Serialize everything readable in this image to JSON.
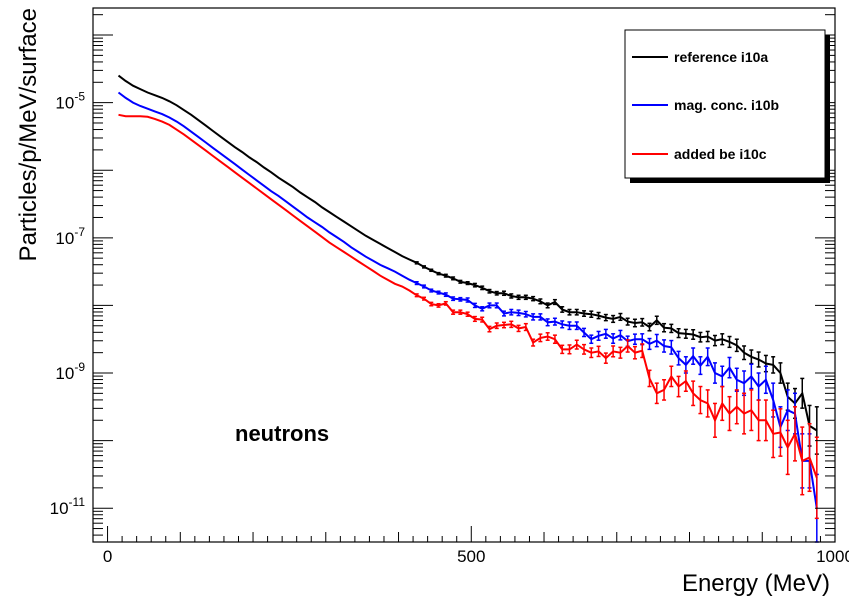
{
  "chart_data": {
    "type": "line",
    "title": "",
    "xlabel": "Energy (MeV)",
    "ylabel": "Particles/p/MeV/surface",
    "annotation": "neutrons",
    "xlim": [
      -20,
      1000
    ],
    "ylim_log10": [
      -11.5,
      -3.6
    ],
    "yscale": "log",
    "x_ticks": [
      {
        "value": 0,
        "label": "0"
      },
      {
        "value": 500,
        "label": "500"
      },
      {
        "value": 1000,
        "label": "1000"
      }
    ],
    "y_ticks": [
      {
        "exp": -5,
        "base": "10",
        "power": "-5"
      },
      {
        "exp": -7,
        "base": "10",
        "power": "-7"
      },
      {
        "exp": -9,
        "base": "10",
        "power": "-9"
      },
      {
        "exp": -11,
        "base": "10",
        "power": "-11"
      }
    ],
    "grid": false,
    "legend_position": "top-right",
    "series": [
      {
        "name": "reference i10a",
        "color": "#000000",
        "x": [
          15,
          25,
          35,
          45,
          55,
          65,
          75,
          85,
          95,
          105,
          115,
          125,
          135,
          145,
          155,
          165,
          175,
          185,
          195,
          205,
          215,
          225,
          235,
          245,
          255,
          265,
          275,
          285,
          295,
          305,
          315,
          325,
          335,
          345,
          355,
          365,
          375,
          385,
          395,
          405,
          415,
          425,
          435,
          445,
          455,
          465,
          475,
          485,
          495,
          505,
          515,
          525,
          535,
          545,
          555,
          565,
          575,
          585,
          595,
          605,
          615,
          625,
          635,
          645,
          655,
          665,
          675,
          685,
          695,
          705,
          715,
          725,
          735,
          745,
          755,
          765,
          775,
          785,
          795,
          805,
          815,
          825,
          835,
          845,
          855,
          865,
          875,
          885,
          895,
          905,
          915,
          925,
          935,
          945,
          955,
          965,
          975
        ],
        "y": [
          -4.6,
          -4.68,
          -4.75,
          -4.8,
          -4.85,
          -4.89,
          -4.93,
          -4.98,
          -5.04,
          -5.11,
          -5.18,
          -5.26,
          -5.34,
          -5.42,
          -5.5,
          -5.58,
          -5.66,
          -5.73,
          -5.81,
          -5.88,
          -5.96,
          -6.03,
          -6.11,
          -6.18,
          -6.25,
          -6.33,
          -6.4,
          -6.47,
          -6.55,
          -6.62,
          -6.69,
          -6.76,
          -6.83,
          -6.9,
          -6.97,
          -7.03,
          -7.09,
          -7.15,
          -7.21,
          -7.27,
          -7.32,
          -7.37,
          -7.43,
          -7.48,
          -7.53,
          -7.56,
          -7.6,
          -7.65,
          -7.67,
          -7.7,
          -7.74,
          -7.79,
          -7.82,
          -7.82,
          -7.86,
          -7.88,
          -7.88,
          -7.9,
          -7.94,
          -8.0,
          -7.95,
          -8.06,
          -8.1,
          -8.1,
          -8.12,
          -8.13,
          -8.15,
          -8.18,
          -8.2,
          -8.17,
          -8.24,
          -8.26,
          -8.25,
          -8.32,
          -8.22,
          -8.33,
          -8.34,
          -8.41,
          -8.42,
          -8.43,
          -8.47,
          -8.46,
          -8.52,
          -8.5,
          -8.54,
          -8.59,
          -8.7,
          -8.76,
          -8.8,
          -8.86,
          -8.88,
          -9.0,
          -9.35,
          -9.45,
          -9.3,
          -9.78,
          -9.85
        ],
        "err": [
          0,
          0,
          0,
          0,
          0,
          0,
          0,
          0,
          0,
          0,
          0,
          0,
          0,
          0,
          0,
          0,
          0,
          0,
          0,
          0,
          0,
          0,
          0,
          0,
          0,
          0,
          0,
          0,
          0,
          0,
          0,
          0,
          0,
          0,
          0,
          0,
          0,
          0,
          0,
          0,
          0,
          0.015,
          0.015,
          0.015,
          0.015,
          0.02,
          0.02,
          0.02,
          0.02,
          0.025,
          0.025,
          0.025,
          0.025,
          0.03,
          0.03,
          0.03,
          0.03,
          0.03,
          0.035,
          0.035,
          0.035,
          0.04,
          0.04,
          0.04,
          0.04,
          0.045,
          0.045,
          0.045,
          0.05,
          0.05,
          0.05,
          0.055,
          0.055,
          0.055,
          0.06,
          0.06,
          0.06,
          0.065,
          0.065,
          0.07,
          0.07,
          0.075,
          0.075,
          0.08,
          0.08,
          0.09,
          0.1,
          0.1,
          0.11,
          0.12,
          0.12,
          0.15,
          0.2,
          0.22,
          0.22,
          0.3,
          0.35
        ]
      },
      {
        "name": "mag. conc. i10b",
        "color": "#0000ff",
        "x": [
          15,
          25,
          35,
          45,
          55,
          65,
          75,
          85,
          95,
          105,
          115,
          125,
          135,
          145,
          155,
          165,
          175,
          185,
          195,
          205,
          215,
          225,
          235,
          245,
          255,
          265,
          275,
          285,
          295,
          305,
          315,
          325,
          335,
          345,
          355,
          365,
          375,
          385,
          395,
          405,
          415,
          425,
          435,
          445,
          455,
          465,
          475,
          485,
          495,
          505,
          515,
          525,
          535,
          545,
          555,
          565,
          575,
          585,
          595,
          605,
          615,
          625,
          635,
          645,
          655,
          665,
          675,
          685,
          695,
          705,
          715,
          725,
          735,
          745,
          755,
          765,
          775,
          785,
          795,
          805,
          815,
          825,
          835,
          845,
          855,
          865,
          875,
          885,
          895,
          905,
          915,
          925,
          935,
          945,
          955,
          965,
          975
        ],
        "y": [
          -4.85,
          -4.93,
          -5.0,
          -5.05,
          -5.09,
          -5.13,
          -5.17,
          -5.22,
          -5.28,
          -5.35,
          -5.43,
          -5.51,
          -5.59,
          -5.67,
          -5.75,
          -5.83,
          -5.91,
          -5.99,
          -6.07,
          -6.15,
          -6.23,
          -6.31,
          -6.38,
          -6.46,
          -6.54,
          -6.62,
          -6.7,
          -6.77,
          -6.84,
          -6.92,
          -6.99,
          -7.06,
          -7.14,
          -7.21,
          -7.28,
          -7.34,
          -7.4,
          -7.45,
          -7.5,
          -7.56,
          -7.62,
          -7.67,
          -7.72,
          -7.78,
          -7.81,
          -7.84,
          -7.9,
          -7.91,
          -7.92,
          -8.0,
          -8.05,
          -8.0,
          -8.0,
          -8.12,
          -8.1,
          -8.11,
          -8.13,
          -8.17,
          -8.17,
          -8.25,
          -8.24,
          -8.28,
          -8.3,
          -8.3,
          -8.4,
          -8.5,
          -8.45,
          -8.42,
          -8.49,
          -8.44,
          -8.53,
          -8.5,
          -8.5,
          -8.57,
          -8.52,
          -8.6,
          -8.62,
          -8.78,
          -8.88,
          -8.75,
          -8.89,
          -8.76,
          -9.0,
          -9.05,
          -8.92,
          -9.1,
          -9.15,
          -9.05,
          -9.2,
          -9.1,
          -9.4,
          -9.8,
          -9.55,
          -9.6,
          -10.3,
          -10.3,
          -11.0
        ],
        "err": [
          0,
          0,
          0,
          0,
          0,
          0,
          0,
          0,
          0,
          0,
          0,
          0,
          0,
          0,
          0,
          0,
          0,
          0,
          0,
          0,
          0,
          0,
          0,
          0,
          0,
          0,
          0,
          0,
          0,
          0,
          0,
          0,
          0,
          0,
          0,
          0,
          0,
          0,
          0,
          0,
          0,
          0.02,
          0.02,
          0.02,
          0.02,
          0.025,
          0.025,
          0.025,
          0.03,
          0.03,
          0.03,
          0.035,
          0.035,
          0.035,
          0.04,
          0.04,
          0.04,
          0.045,
          0.045,
          0.05,
          0.05,
          0.05,
          0.055,
          0.055,
          0.06,
          0.06,
          0.065,
          0.065,
          0.07,
          0.07,
          0.075,
          0.075,
          0.08,
          0.08,
          0.09,
          0.09,
          0.1,
          0.1,
          0.12,
          0.12,
          0.13,
          0.13,
          0.15,
          0.15,
          0.15,
          0.17,
          0.18,
          0.18,
          0.2,
          0.2,
          0.25,
          0.3,
          0.3,
          0.3,
          0.4,
          0.4,
          0.5
        ]
      },
      {
        "name": "added be i10c",
        "color": "#ff0000",
        "x": [
          15,
          25,
          35,
          45,
          55,
          65,
          75,
          85,
          95,
          105,
          115,
          125,
          135,
          145,
          155,
          165,
          175,
          185,
          195,
          205,
          215,
          225,
          235,
          245,
          255,
          265,
          275,
          285,
          295,
          305,
          315,
          325,
          335,
          345,
          355,
          365,
          375,
          385,
          395,
          405,
          415,
          425,
          435,
          445,
          455,
          465,
          475,
          485,
          495,
          505,
          515,
          525,
          535,
          545,
          555,
          565,
          575,
          585,
          595,
          605,
          615,
          625,
          635,
          645,
          655,
          665,
          675,
          685,
          695,
          705,
          715,
          725,
          735,
          745,
          755,
          765,
          775,
          785,
          795,
          805,
          815,
          825,
          835,
          845,
          855,
          865,
          875,
          885,
          895,
          905,
          915,
          925,
          935,
          945,
          955,
          965,
          975
        ],
        "y": [
          -5.18,
          -5.2,
          -5.2,
          -5.2,
          -5.21,
          -5.24,
          -5.28,
          -5.33,
          -5.4,
          -5.47,
          -5.55,
          -5.63,
          -5.71,
          -5.79,
          -5.87,
          -5.95,
          -6.03,
          -6.11,
          -6.19,
          -6.27,
          -6.35,
          -6.43,
          -6.51,
          -6.59,
          -6.67,
          -6.75,
          -6.83,
          -6.91,
          -6.99,
          -7.07,
          -7.14,
          -7.21,
          -7.28,
          -7.35,
          -7.42,
          -7.49,
          -7.56,
          -7.62,
          -7.68,
          -7.72,
          -7.78,
          -7.85,
          -7.9,
          -7.98,
          -8.0,
          -7.97,
          -8.1,
          -8.1,
          -8.13,
          -8.2,
          -8.21,
          -8.35,
          -8.3,
          -8.29,
          -8.28,
          -8.34,
          -8.32,
          -8.55,
          -8.48,
          -8.46,
          -8.5,
          -8.65,
          -8.65,
          -8.58,
          -8.65,
          -8.7,
          -8.68,
          -8.78,
          -8.68,
          -8.7,
          -8.6,
          -8.7,
          -8.67,
          -9.08,
          -9.3,
          -9.25,
          -9.05,
          -9.2,
          -9.12,
          -9.3,
          -9.4,
          -9.45,
          -9.7,
          -9.45,
          -9.6,
          -9.5,
          -9.6,
          -9.55,
          -9.7,
          -9.7,
          -9.9,
          -9.88,
          -10.1,
          -9.9,
          -10.3,
          -10.25,
          -10.55
        ],
        "err": [
          0,
          0,
          0,
          0,
          0,
          0,
          0,
          0,
          0,
          0,
          0,
          0,
          0,
          0,
          0,
          0,
          0,
          0,
          0,
          0,
          0,
          0,
          0,
          0,
          0,
          0,
          0,
          0,
          0,
          0,
          0,
          0,
          0,
          0,
          0,
          0,
          0,
          0,
          0,
          0,
          0,
          0.02,
          0.02,
          0.025,
          0.025,
          0.025,
          0.03,
          0.03,
          0.03,
          0.035,
          0.035,
          0.04,
          0.04,
          0.04,
          0.045,
          0.045,
          0.05,
          0.05,
          0.055,
          0.055,
          0.06,
          0.06,
          0.065,
          0.065,
          0.07,
          0.07,
          0.075,
          0.075,
          0.08,
          0.08,
          0.09,
          0.09,
          0.1,
          0.12,
          0.15,
          0.15,
          0.15,
          0.15,
          0.15,
          0.18,
          0.2,
          0.2,
          0.25,
          0.25,
          0.25,
          0.25,
          0.3,
          0.3,
          0.3,
          0.3,
          0.35,
          0.35,
          0.4,
          0.4,
          0.5,
          0.5,
          0.6
        ]
      }
    ]
  }
}
